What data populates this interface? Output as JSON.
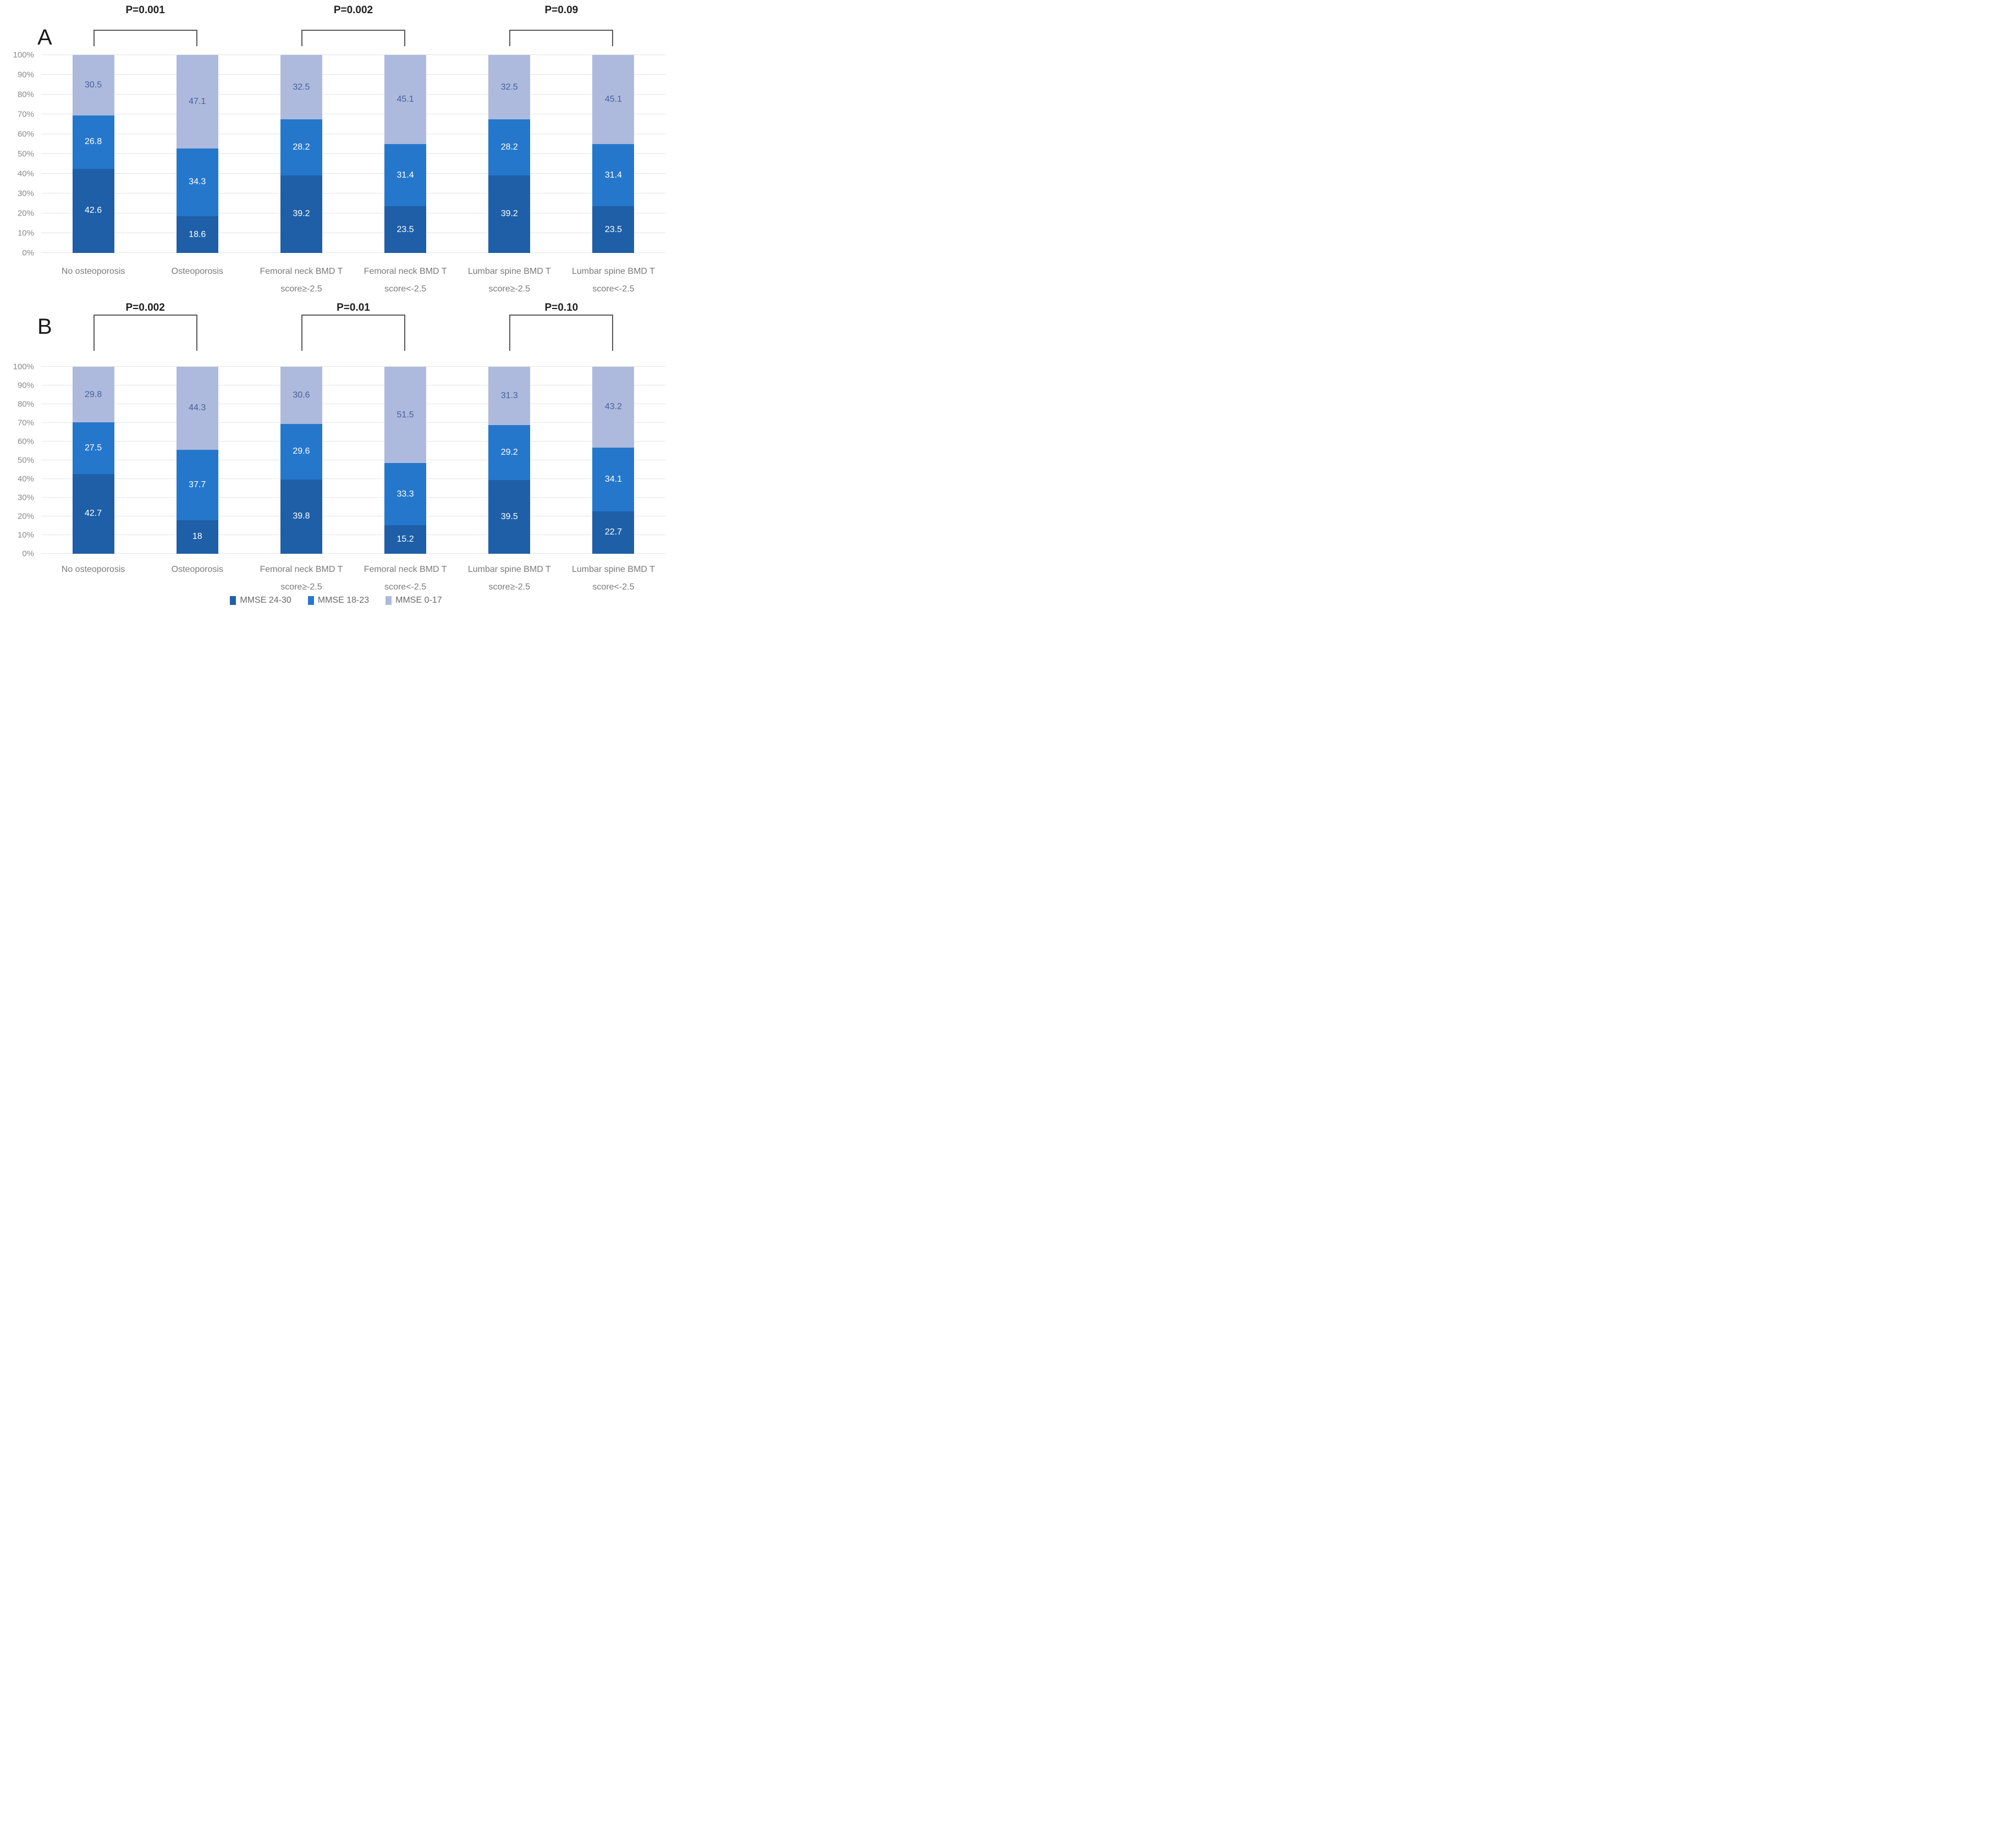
{
  "figure": {
    "y_ticks": [
      "0%",
      "10%",
      "20%",
      "30%",
      "40%",
      "50%",
      "60%",
      "70%",
      "80%",
      "90%",
      "100%"
    ],
    "legend": [
      {
        "label": "MMSE 24-30",
        "color": "#1e5fa8"
      },
      {
        "label": "MMSE 18-23",
        "color": "#2577cb"
      },
      {
        "label": "MMSE 0-17",
        "color": "#adbadd"
      }
    ],
    "colors": {
      "dark_blue": "#1e5fa8",
      "medium_blue": "#2577cb",
      "light_blue": "#adbadd",
      "value_text_on_light": "#49609c",
      "value_text_on_dark": "#ffffff",
      "gridline": "#e4e4e4",
      "axis_text": "#8a8a8a",
      "category_text": "#7a7a7a",
      "bracket_line": "#58595b"
    }
  },
  "chart_data": [
    {
      "panel": "A",
      "type": "bar",
      "stacked": true,
      "grid": true,
      "ylim": [
        0,
        100
      ],
      "ytick_step": 10,
      "legend_position": "bottom",
      "categories": [
        "No osteoporosis",
        "Osteoporosis",
        "Femoral neck BMD T score≥-2.5",
        "Femoral neck BMD T score<-2.5",
        "Lumbar spine BMD T score≥-2.5",
        "Lumbar spine BMD T score<-2.5"
      ],
      "series": [
        {
          "name": "MMSE 24-30",
          "color": "#1e5fa8",
          "values": [
            42.6,
            18.6,
            39.2,
            23.5,
            39.2,
            23.5
          ]
        },
        {
          "name": "MMSE 18-23",
          "color": "#2577cb",
          "values": [
            26.8,
            34.3,
            28.2,
            31.4,
            28.2,
            31.4
          ]
        },
        {
          "name": "MMSE 0-17",
          "color": "#adbadd",
          "values": [
            30.5,
            47.1,
            32.5,
            45.1,
            32.5,
            45.1
          ]
        }
      ],
      "p_annotations": [
        {
          "label": "P=0.001",
          "between": [
            0,
            1
          ]
        },
        {
          "label": "P=0.002",
          "between": [
            2,
            3
          ]
        },
        {
          "label": "P=0.09",
          "between": [
            4,
            5
          ]
        }
      ]
    },
    {
      "panel": "B",
      "type": "bar",
      "stacked": true,
      "grid": true,
      "ylim": [
        0,
        100
      ],
      "ytick_step": 10,
      "legend_position": "bottom",
      "categories": [
        "No osteoporosis",
        "Osteoporosis",
        "Femoral neck BMD T score≥-2.5",
        "Femoral neck BMD T score<-2.5",
        "Lumbar spine BMD T score≥-2.5",
        "Lumbar spine BMD T score<-2.5"
      ],
      "series": [
        {
          "name": "MMSE 24-30",
          "color": "#1e5fa8",
          "values": [
            42.7,
            18,
            39.8,
            15.2,
            39.5,
            22.7
          ]
        },
        {
          "name": "MMSE 18-23",
          "color": "#2577cb",
          "values": [
            27.5,
            37.7,
            29.6,
            33.3,
            29.2,
            34.1
          ]
        },
        {
          "name": "MMSE 0-17",
          "color": "#adbadd",
          "values": [
            29.8,
            44.3,
            30.6,
            51.5,
            31.3,
            43.2
          ]
        }
      ],
      "p_annotations": [
        {
          "label": "P=0.002",
          "between": [
            0,
            1
          ]
        },
        {
          "label": "P=0.01",
          "between": [
            2,
            3
          ]
        },
        {
          "label": "P=0.10",
          "between": [
            4,
            5
          ]
        }
      ]
    }
  ]
}
